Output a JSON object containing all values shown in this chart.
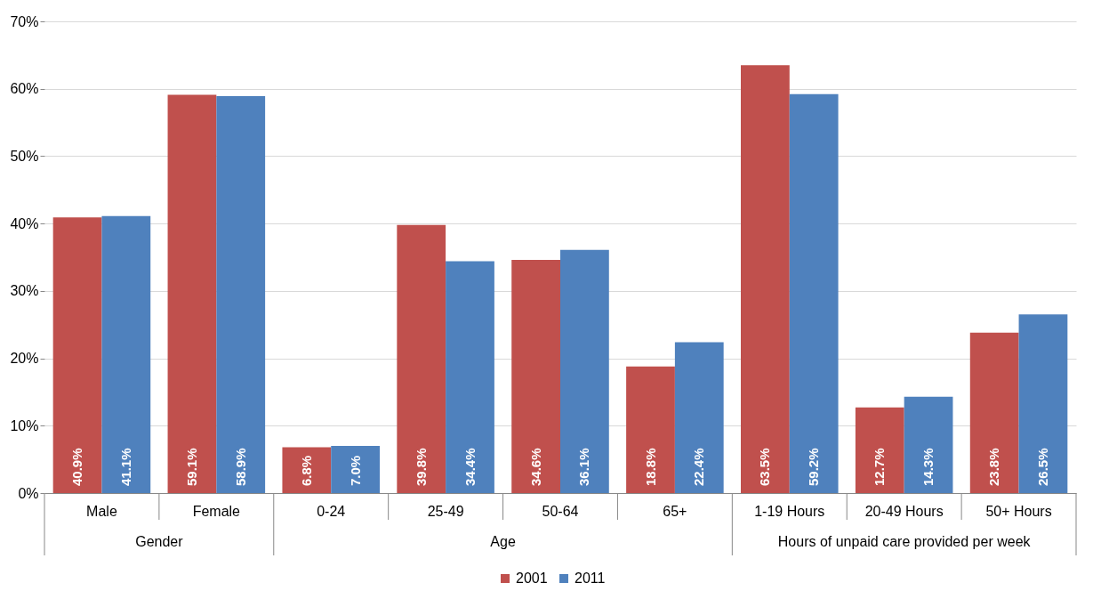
{
  "chart_data": {
    "type": "bar",
    "categories": [
      "Male",
      "Female",
      "0-24",
      "25-49",
      "50-64",
      "65+",
      "1-19 Hours",
      "20-49 Hours",
      "50+ Hours"
    ],
    "series": [
      {
        "name": "2001",
        "color": "#c0504d",
        "values": [
          40.9,
          59.1,
          6.8,
          39.8,
          34.6,
          18.8,
          63.5,
          12.7,
          23.8
        ],
        "value_labels": [
          "40.9%",
          "59.1%",
          "6.8%",
          "39.8%",
          "34.6%",
          "18.8%",
          "63.5%",
          "12.7%",
          "23.8%"
        ]
      },
      {
        "name": "2011",
        "color": "#4f81bd",
        "values": [
          41.1,
          58.9,
          7.0,
          34.4,
          36.1,
          22.4,
          59.2,
          14.3,
          26.5
        ],
        "value_labels": [
          "41.1%",
          "58.9%",
          "7.0%",
          "34.4%",
          "36.1%",
          "22.4%",
          "59.2%",
          "14.3%",
          "26.5%"
        ]
      }
    ],
    "annotations": [
      "Gender",
      "Age",
      "Hours of unpaid care provided per week"
    ],
    "ylim": [
      0,
      70
    ],
    "yticks": [
      {
        "value": 0,
        "label": "0%"
      },
      {
        "value": 10,
        "label": "10%"
      },
      {
        "value": 20,
        "label": "20%"
      },
      {
        "value": 30,
        "label": "30%"
      },
      {
        "value": 40,
        "label": "40%"
      },
      {
        "value": 50,
        "label": "50%"
      },
      {
        "value": 60,
        "label": "60%"
      },
      {
        "value": 70,
        "label": "70%"
      }
    ],
    "grid": "y",
    "legend": "bottom"
  }
}
